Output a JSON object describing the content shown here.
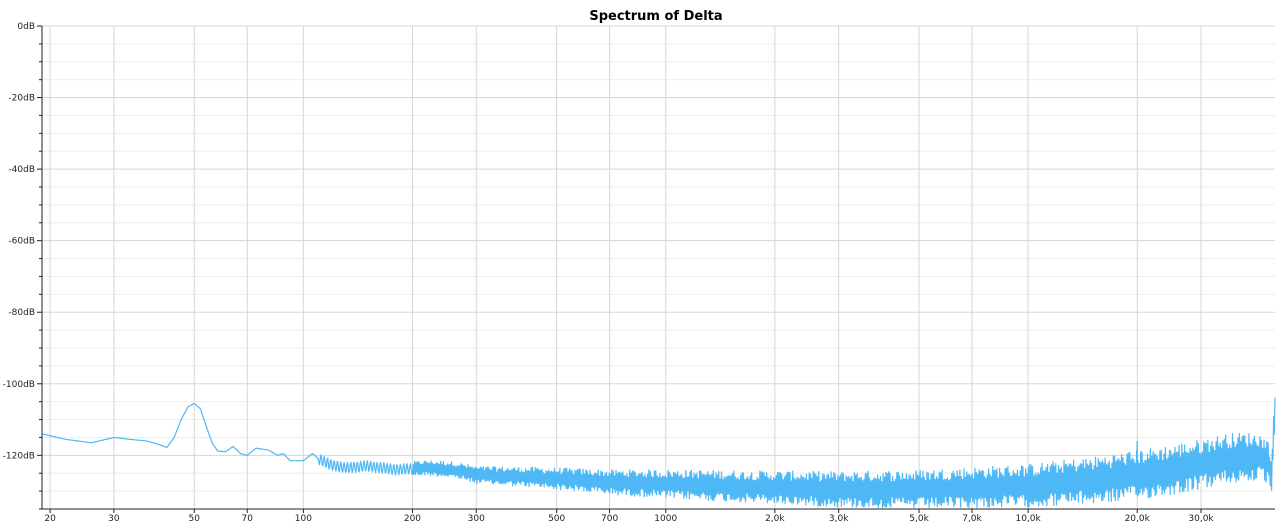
{
  "chart_data": {
    "type": "line",
    "title": "Spectrum of Delta",
    "x_scale": "log",
    "xlim": [
      19,
      48000
    ],
    "ylim": [
      -135,
      0
    ],
    "y_ticks": [
      {
        "value": 0,
        "label": "0dB"
      },
      {
        "value": -20,
        "label": "-20dB"
      },
      {
        "value": -40,
        "label": "-40dB"
      },
      {
        "value": -60,
        "label": "-60dB"
      },
      {
        "value": -80,
        "label": "-80dB"
      },
      {
        "value": -100,
        "label": "-100dB"
      },
      {
        "value": -120,
        "label": "-120dB"
      }
    ],
    "x_ticks": [
      {
        "value": 20,
        "label": "20"
      },
      {
        "value": 30,
        "label": "30"
      },
      {
        "value": 50,
        "label": "50"
      },
      {
        "value": 70,
        "label": "70"
      },
      {
        "value": 100,
        "label": "100"
      },
      {
        "value": 200,
        "label": "200"
      },
      {
        "value": 300,
        "label": "300"
      },
      {
        "value": 500,
        "label": "500"
      },
      {
        "value": 700,
        "label": "700"
      },
      {
        "value": 1000,
        "label": "1000"
      },
      {
        "value": 2000,
        "label": "2,0k"
      },
      {
        "value": 3000,
        "label": "3,0k"
      },
      {
        "value": 5000,
        "label": "5,0k"
      },
      {
        "value": 7000,
        "label": "7,0k"
      },
      {
        "value": 10000,
        "label": "10,0k"
      },
      {
        "value": 20000,
        "label": "20,0k"
      },
      {
        "value": 30000,
        "label": "30,0k"
      }
    ],
    "grid": true,
    "legend": "none",
    "series": [
      {
        "color": "#4db8f5",
        "points": [
          [
            19,
            -114
          ],
          [
            22,
            -115.5
          ],
          [
            26,
            -116.5
          ],
          [
            30,
            -115
          ],
          [
            33,
            -115.5
          ],
          [
            37,
            -116
          ],
          [
            40,
            -117
          ],
          [
            42,
            -117.8
          ],
          [
            44,
            -115
          ],
          [
            46,
            -110
          ],
          [
            48,
            -106.5
          ],
          [
            50,
            -105.5
          ],
          [
            52,
            -107
          ],
          [
            54,
            -112
          ],
          [
            56,
            -116.5
          ],
          [
            58,
            -118.8
          ],
          [
            61,
            -119
          ],
          [
            64,
            -117.5
          ],
          [
            67,
            -119.5
          ],
          [
            70,
            -120
          ],
          [
            74,
            -118
          ],
          [
            80,
            -118.5
          ],
          [
            85,
            -120
          ],
          [
            88,
            -119.5
          ],
          [
            92,
            -121.5
          ],
          [
            100,
            -121.5
          ],
          [
            106,
            -119.5
          ],
          [
            110,
            -121
          ],
          [
            118,
            -122.5
          ],
          [
            130,
            -123.5
          ],
          [
            150,
            -123
          ],
          [
            180,
            -124
          ],
          [
            220,
            -123.5
          ],
          [
            260,
            -124
          ],
          [
            300,
            -125.5
          ],
          [
            400,
            -126
          ],
          [
            500,
            -126.5
          ],
          [
            700,
            -127.5
          ],
          [
            1000,
            -128
          ],
          [
            2000,
            -129
          ],
          [
            3000,
            -129.5
          ],
          [
            5000,
            -129.5
          ],
          [
            7000,
            -129
          ],
          [
            10000,
            -128.5
          ],
          [
            15000,
            -127
          ],
          [
            20000,
            -125.5
          ],
          [
            25000,
            -124
          ],
          [
            30000,
            -122.5
          ],
          [
            35000,
            -121
          ],
          [
            40000,
            -120.5
          ],
          [
            44000,
            -120.5
          ],
          [
            46000,
            -122
          ],
          [
            47000,
            -125
          ],
          [
            48000,
            -108
          ]
        ],
        "spread": [
          [
            200,
            2
          ],
          [
            500,
            3
          ],
          [
            1000,
            4
          ],
          [
            3000,
            5
          ],
          [
            10000,
            6
          ],
          [
            20000,
            7
          ],
          [
            40000,
            7
          ],
          [
            48000,
            6
          ]
        ],
        "spikes": [
          [
            20000,
            -116
          ]
        ]
      }
    ]
  }
}
